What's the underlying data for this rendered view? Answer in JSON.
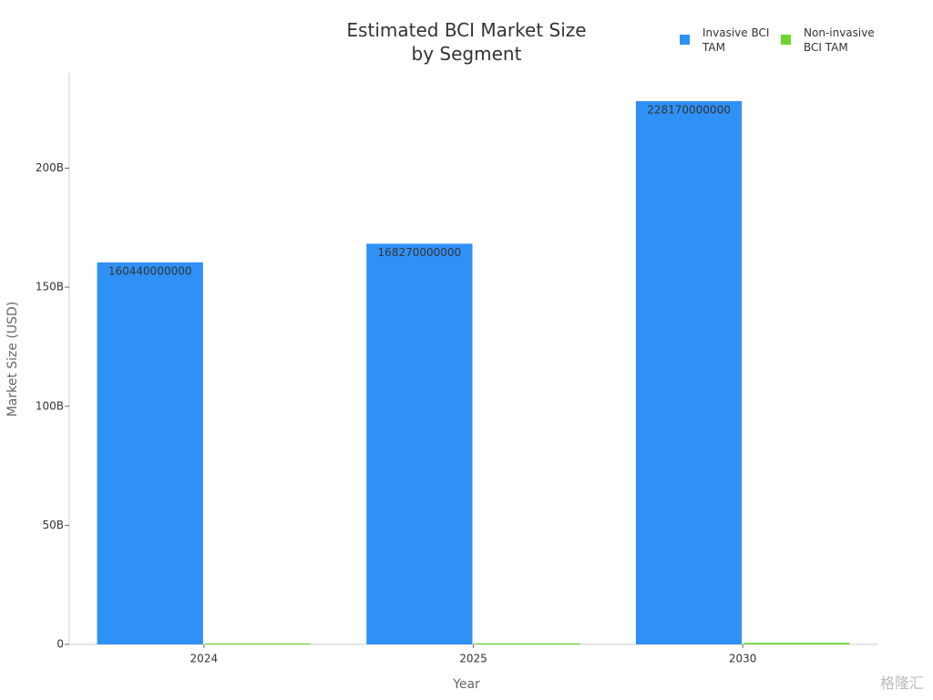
{
  "chart_data": {
    "type": "grouped_bar",
    "title": "Estimated BCI Market Size by Segment",
    "x_label": "Year",
    "y_label": "Market Size (USD)",
    "categories": [
      "2024",
      "2025",
      "2030"
    ],
    "series": [
      {
        "name": "Invasive BCI TAM",
        "color": "#2f91f5",
        "values": [
          160440000000,
          168270000000,
          228170000000
        ],
        "show_labels": true
      },
      {
        "name": "Non-invasive BCI TAM",
        "color": "#6cd62f",
        "values": [
          400000000,
          450000000,
          650000000
        ],
        "show_labels": false
      }
    ],
    "ylim": [
      0,
      240000000000
    ],
    "yticks": [
      0,
      {
        "value": 50000000000,
        "label": "50B"
      },
      {
        "value": 100000000000,
        "label": "100B"
      },
      {
        "value": 150000000000,
        "label": "150B"
      },
      {
        "value": 200000000000,
        "label": "200B"
      }
    ],
    "grid": false,
    "legend": "top-right",
    "watermark": "格隆汇"
  }
}
